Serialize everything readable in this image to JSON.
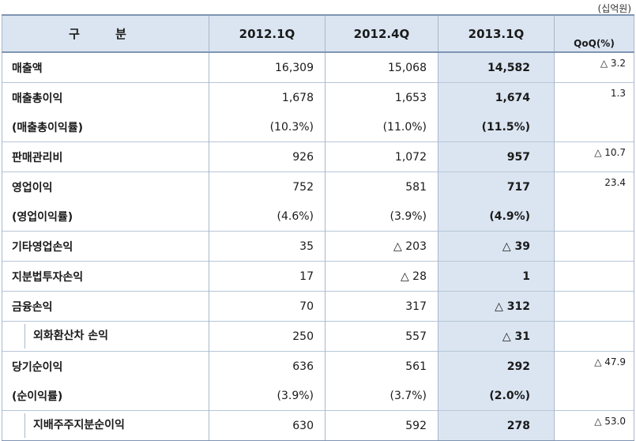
{
  "unit": "(십억원)",
  "headers": [
    "구 분",
    "2012.1Q",
    "2012.4Q",
    "2013.1Q",
    "QoQ(%)"
  ],
  "rows": [
    {
      "label": "매출액",
      "q2012_1": "16,309",
      "q2012_4": "15,068",
      "q2013_1": "14,582",
      "qoq": "△ 3.2"
    },
    {
      "label": "매출총이익",
      "q2012_1": "1,678",
      "q2012_4": "1,653",
      "q2013_1": "1,674",
      "qoq": "1.3"
    },
    {
      "label": "(매출총이익률)",
      "q2012_1": "(10.3%)",
      "q2012_4": "(11.0%)",
      "q2013_1": "(11.5%)",
      "qoq": ""
    },
    {
      "label": "판매관리비",
      "q2012_1": "926",
      "q2012_4": "1,072",
      "q2013_1": "957",
      "qoq": "△ 10.7"
    },
    {
      "label": "영업이익",
      "q2012_1": "752",
      "q2012_4": "581",
      "q2013_1": "717",
      "qoq": "23.4"
    },
    {
      "label": "(영업이익률)",
      "q2012_1": "(4.6%)",
      "q2012_4": "(3.9%)",
      "q2013_1": "(4.9%)",
      "qoq": ""
    },
    {
      "label": "기타영업손익",
      "q2012_1": "35",
      "q2012_4": "△ 203",
      "q2013_1": "△ 39",
      "qoq": ""
    },
    {
      "label": "지분법투자손익",
      "q2012_1": "17",
      "q2012_4": "△ 28",
      "q2013_1": "1",
      "qoq": ""
    },
    {
      "label": "금융손익",
      "q2012_1": "70",
      "q2012_4": "317",
      "q2013_1": "△ 312",
      "qoq": ""
    },
    {
      "label": "외화환산차 손익",
      "q2012_1": "250",
      "q2012_4": "557",
      "q2013_1": "△ 31",
      "qoq": ""
    },
    {
      "label": "당기순이익",
      "q2012_1": "636",
      "q2012_4": "561",
      "q2013_1": "292",
      "qoq": "△ 47.9"
    },
    {
      "label": "(순이익률)",
      "q2012_1": "(3.9%)",
      "q2012_4": "(3.7%)",
      "q2013_1": "(2.0%)",
      "qoq": ""
    },
    {
      "label": "지배주주지분순이익",
      "q2012_1": "630",
      "q2012_4": "592",
      "q2013_1": "278",
      "qoq": "△ 53.0"
    }
  ]
}
